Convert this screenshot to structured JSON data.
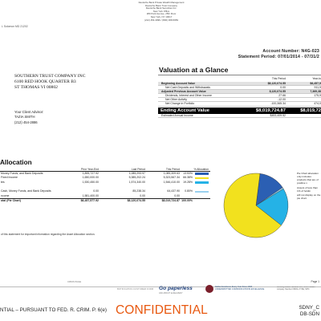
{
  "header": {
    "left_code": "L Solomon MD 21202",
    "firm_lines": [
      "Deutsche Bank Private Wealth Management",
      "Deutsche Bank Trust Company",
      "Deutsche Bank Securities Inc.",
      "New York Office",
      "280 Park Avenue, 25th Floor",
      "New York, NY 10017",
      "(212) 454-3996 / (800) 368-5959"
    ],
    "account_number": "Account Number: N4G-023",
    "statement_period": "Statement Period: 07/01/2014 - 07/31/2"
  },
  "address": {
    "lines": [
      "SOUTHERN TRUST COMPANY INC",
      "6100 RED HOOK QUARTER B3",
      "ST THOMAS VI 00802"
    ]
  },
  "advisor": {
    "heading": "Your Client Advisor:",
    "name": "TAZIA SMITH",
    "phone": "(212) 454-2886"
  },
  "glance": {
    "title": "Valuation at a Glance",
    "col1": "This Period",
    "col2": "Year-to",
    "rows": [
      {
        "label": "Beginning Account Value",
        "v1": "$8,120,074.55",
        "v2": "$6,457,5",
        "bold": true,
        "shade": true,
        "indent": false
      },
      {
        "label": "Net Cash Deposits and Withdrawals",
        "v1": "0.00",
        "v2": "911,9",
        "bold": false,
        "shade": false,
        "indent": true
      },
      {
        "label": "Adjusted Previous Account Value",
        "v1": "8,120,074.55",
        "v2": "7,369,38",
        "bold": true,
        "shade": true,
        "indent": false
      },
      {
        "label": "Dividends, Interest and Other Income",
        "v1": "27.66",
        "v2": "175,9",
        "bold": false,
        "shade": false,
        "indent": true
      },
      {
        "label": "Net Other Activity",
        "v1": "-12.00",
        "v2": "",
        "bold": false,
        "shade": false,
        "indent": true
      },
      {
        "label": "Net Change in Portfolio",
        "v1": "-100,365.34",
        "v2": "474,0",
        "bold": false,
        "shade": false,
        "indent": true
      }
    ],
    "ending": {
      "label": "Ending Account Value",
      "v1": "$8,019,724.87",
      "v2": "$8,019,72"
    },
    "income": {
      "label": "Estimated Annual Income",
      "v1": "$453,409.52",
      "v2": ""
    }
  },
  "allocation": {
    "title": "Allocation",
    "headers": {
      "c1": "Prior Year-End",
      "c2": "Last Period",
      "c3": "This Period",
      "c4": "% Allocation"
    },
    "rows": [
      {
        "name": "Money Funds, and Bank Deposits",
        "c1": "1,895,727.92",
        "c2": "1,085,293.97",
        "c3": "1,085,309.63",
        "c4": "13.53%",
        "color": "#2b5fb3"
      },
      {
        "name": "Fixed Income",
        "c1": "1,650,000.00",
        "c2": "5,385,202.24",
        "c3": "5,323,567.34",
        "c4": "66.38%",
        "color": "#f2e11e"
      },
      {
        "name": "tes",
        "c1": "1,530,450.00",
        "c2": "1,574,340.00",
        "c3": "1,546,410.00",
        "c4": "19.28%",
        "color": "#25b2e6"
      },
      {
        "name": "Cash, Money Funds, and Bank Deposits",
        "c1": "0.00",
        "c2": "85,238.34",
        "c3": "64,437.90",
        "c4": "0.80%",
        "color": "#9ad1ef"
      },
      {
        "name": "ncome",
        "c1": "1,581,400.00",
        "c2": "0.00",
        "c3": "0.00",
        "c4": "",
        "color": ""
      }
    ],
    "total": {
      "name": "otal (Pie Chart)",
      "c1": "$6,457,577.92",
      "c2": "$8,120,074.55",
      "c3": "$8,019,724.87",
      "c4": "100.00%"
    },
    "footnote": "of this statement for important information regarding the Asset Allocation section.",
    "side_note": [
      "Pie Chart allocation only includes",
      "products that are of positive v",
      "Assets of less than 1% of holdin",
      "will not display on the pie chart."
    ]
  },
  "chart_data": {
    "type": "pie",
    "title": "",
    "categories": [
      "Money Funds, and Bank Deposits",
      "Fixed Income",
      "tes",
      "Cash, Money Funds, and Bank Deposits"
    ],
    "values": [
      13.53,
      66.38,
      19.28,
      0.8
    ],
    "colors": [
      "#2b5fb3",
      "#f2e11e",
      "#25b2e6",
      "#9ad1ef"
    ]
  },
  "footer": {
    "small_left": "CRMS PAGE",
    "small_mid": "BOTIFICATION CUSTOMER FORM",
    "go_paperless": "Go paperless",
    "go_paperless_sub": "ASK ABOUT E-DELIVERY",
    "award_text": "Dalbar Excellence Every Year Since 2003 UNDERWRITTEN COMMUNICATIONS EXCELLENCE",
    "right_text": "Pershing Advisor Solutions LLC, a BNY Mellon company. Member FINRA, NYSE, SIPC",
    "page": "Page 1",
    "conf_left": "NTIAL – PURSUANT TO FED. R. CRIM. P. 6(e)",
    "conf_big": "CONFIDENTIAL",
    "conf_right_1": "SDNY_C",
    "conf_right_2": "DB-SDN"
  }
}
